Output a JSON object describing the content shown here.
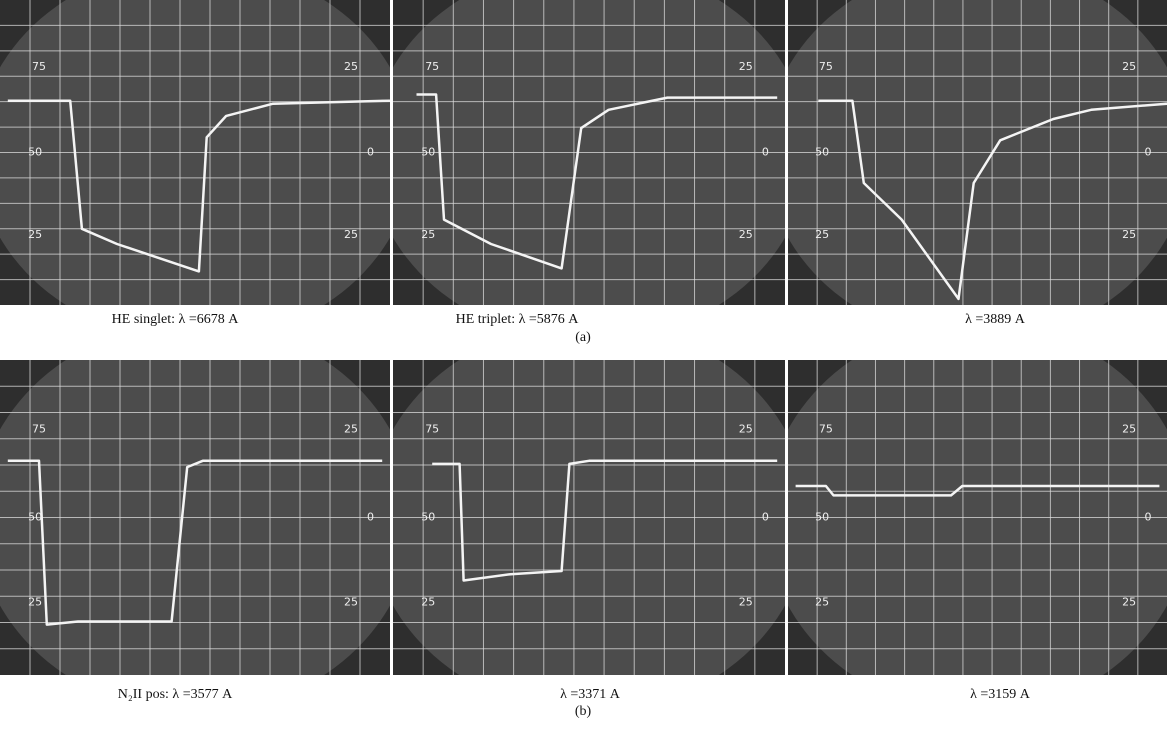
{
  "rows": [
    {
      "label": "(a)",
      "panels": [
        {
          "caption": "HE singlet: λ =6678 A"
        },
        {
          "caption": "HE triplet: λ =5876 A"
        },
        {
          "caption": "λ =3889 A"
        }
      ]
    },
    {
      "label": "(b)",
      "panels": [
        {
          "caption": "N₂II pos: λ =3577 A"
        },
        {
          "caption": "λ =3371 A"
        },
        {
          "caption": "λ =3159 A"
        }
      ]
    }
  ],
  "graticule": [
    "75",
    "25",
    "50",
    "0",
    "25",
    "25"
  ]
}
